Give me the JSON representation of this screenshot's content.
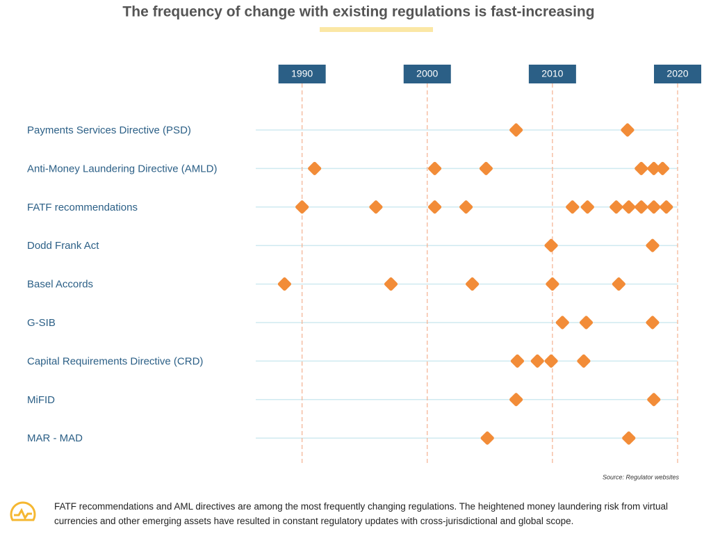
{
  "chart_data": {
    "type": "timeline",
    "title": "The frequency of change with existing regulations is fast-increasing",
    "xlim": [
      1986.3,
      2020
    ],
    "xticks": [
      1990,
      2000,
      2010,
      2020
    ],
    "color": "#f28c38",
    "series": [
      {
        "name": "Payments Services Directive (PSD)",
        "values": [
          2007.1,
          2016
        ]
      },
      {
        "name": "Anti-Money Laundering Directive (AMLD)",
        "values": [
          1991,
          2000.6,
          2004.7,
          2017.1,
          2018.1,
          2018.8
        ]
      },
      {
        "name": "FATF recommendations",
        "values": [
          1990,
          1995.9,
          2000.6,
          2003.1,
          2011.6,
          2012.8,
          2015.1,
          2016.1,
          2017.1,
          2018.1,
          2019.1
        ]
      },
      {
        "name": "Dodd Frank Act",
        "values": [
          2009.9,
          2018
        ]
      },
      {
        "name": "Basel Accords",
        "values": [
          1988.6,
          1997.1,
          2003.6,
          2010,
          2015.3
        ]
      },
      {
        "name": "G-SIB",
        "values": [
          2010.8,
          2012.7,
          2018
        ]
      },
      {
        "name": "Capital Requirements Directive (CRD)",
        "values": [
          2007.2,
          2008.8,
          2009.9,
          2012.5
        ]
      },
      {
        "name": "MiFID",
        "values": [
          2007.1,
          2018.1
        ]
      },
      {
        "name": "MAR - MAD",
        "values": [
          2004.8,
          2016.1
        ]
      }
    ],
    "source": "Source: Regulator websites",
    "note": "FATF recommendations and AML directives are among the most frequently changing regulations. The heightened money laundering risk from virtual currencies and other emerging assets have resulted in constant regulatory updates with cross-jurisdictional and global scope."
  }
}
